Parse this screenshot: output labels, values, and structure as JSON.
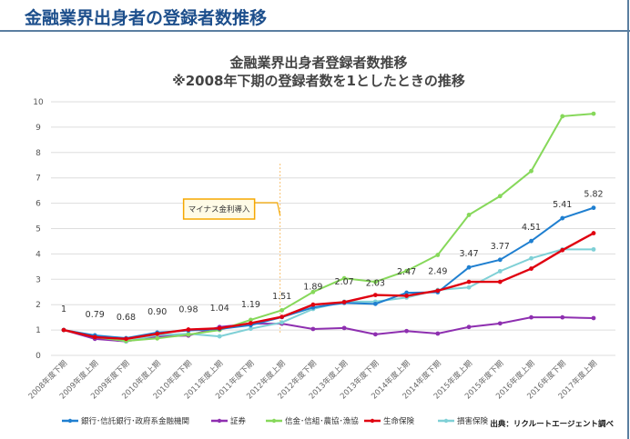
{
  "header": {
    "title": "金融業界出身者の登録者数推移"
  },
  "source": "出典：リクルートエージェント調べ",
  "annotation": {
    "label": "マイナス金利導入",
    "at_category": "2012年度上期"
  },
  "chart_data": {
    "type": "line",
    "title": "金融業界出身者登録者数推移",
    "subtitle": "※2008年下期の登録者数を1としたときの推移",
    "xlabel": "",
    "ylabel": "",
    "ylim": [
      0,
      10
    ],
    "yticks": [
      0,
      1,
      2,
      3,
      4,
      5,
      6,
      7,
      8,
      9,
      10
    ],
    "grid": true,
    "legend": "bottom",
    "categories": [
      "2008年度下期",
      "2009年度上期",
      "2009年度下期",
      "2010年度上期",
      "2010年度下期",
      "2011年度上期",
      "2011年度下期",
      "2012年度上期",
      "2012年度下期",
      "2013年度上期",
      "2013年度下期",
      "2014年度上期",
      "2014年度下期",
      "2015年度上期",
      "2015年度下期",
      "2016年度上期",
      "2016年度下期",
      "2017年度上期"
    ],
    "series": [
      {
        "name": "銀行･信託銀行･政府系金融機関",
        "color": "#1f7fd0",
        "labeled": true,
        "labels": [
          "1",
          "0.79",
          "0.68",
          "0.90",
          "0.98",
          "1.04",
          "1.19",
          "1.51",
          "1.89",
          "2.07",
          "2.03",
          "2.47",
          "2.49",
          "3.47",
          "3.77",
          "4.51",
          "5.41",
          "5.82"
        ],
        "values": [
          1,
          0.79,
          0.68,
          0.9,
          0.98,
          1.04,
          1.19,
          1.51,
          1.89,
          2.07,
          2.03,
          2.47,
          2.49,
          3.47,
          3.77,
          4.51,
          5.41,
          5.82
        ]
      },
      {
        "name": "証券",
        "color": "#8e2fb0",
        "values": [
          1,
          0.65,
          0.55,
          0.75,
          0.78,
          1.12,
          1.25,
          1.25,
          1.04,
          1.08,
          0.83,
          0.96,
          0.86,
          1.12,
          1.26,
          1.5,
          1.5,
          1.47
        ]
      },
      {
        "name": "信金･信組･農協･漁協",
        "color": "#86d85a",
        "values": [
          1,
          0.72,
          0.57,
          0.67,
          0.82,
          1.0,
          1.4,
          1.78,
          2.5,
          3.04,
          2.9,
          3.33,
          3.96,
          5.54,
          6.28,
          7.27,
          9.43,
          9.53
        ]
      },
      {
        "name": "生命保険",
        "color": "#e00010",
        "values": [
          1,
          0.72,
          0.65,
          0.85,
          1.02,
          1.07,
          1.27,
          1.52,
          2.0,
          2.1,
          2.38,
          2.35,
          2.55,
          2.9,
          2.9,
          3.42,
          4.15,
          4.82
        ]
      },
      {
        "name": "損害保険",
        "color": "#7fd0d6",
        "values": [
          1,
          0.78,
          0.55,
          0.8,
          0.85,
          0.75,
          1.05,
          1.3,
          1.83,
          2.12,
          2.12,
          2.28,
          2.58,
          2.68,
          3.32,
          3.83,
          4.18,
          4.18
        ]
      }
    ]
  }
}
